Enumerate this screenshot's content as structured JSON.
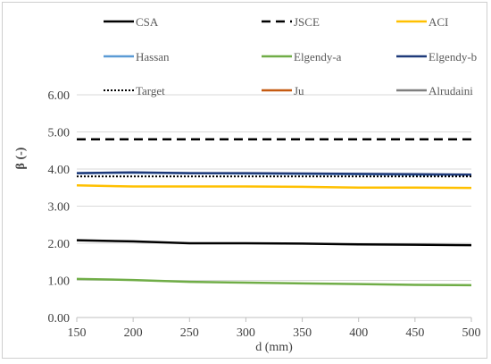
{
  "chart_data": {
    "type": "line",
    "xlabel": "d (mm)",
    "ylabel": "β (-)",
    "xlim": [
      150,
      500
    ],
    "ylim": [
      0,
      6
    ],
    "x_ticks": [
      "150",
      "200",
      "250",
      "300",
      "350",
      "400",
      "450",
      "500"
    ],
    "y_ticks": [
      "0.00",
      "1.00",
      "2.00",
      "3.00",
      "4.00",
      "5.00",
      "6.00"
    ],
    "grid": "horizontal",
    "legend_position": "top",
    "series": [
      {
        "name": "CSA",
        "color": "#000000",
        "dash": "solid",
        "x": [
          150,
          200,
          250,
          300,
          350,
          400,
          450,
          500
        ],
        "values": [
          2.08,
          2.05,
          2.0,
          2.0,
          1.99,
          1.97,
          1.96,
          1.95
        ]
      },
      {
        "name": "JSCE",
        "color": "#000000",
        "dash": "dashed",
        "x": [
          150,
          200,
          250,
          300,
          350,
          400,
          450,
          500
        ],
        "values": [
          4.8,
          4.8,
          4.8,
          4.8,
          4.8,
          4.8,
          4.8,
          4.8
        ]
      },
      {
        "name": "ACI",
        "color": "#FFC000",
        "dash": "solid",
        "x": [
          150,
          200,
          250,
          300,
          350,
          400,
          450,
          500
        ],
        "values": [
          3.56,
          3.53,
          3.53,
          3.53,
          3.52,
          3.5,
          3.5,
          3.49
        ]
      },
      {
        "name": "Hassan",
        "color": "#5B9BD5",
        "dash": "solid",
        "x": [
          150,
          200,
          250,
          300,
          350,
          400,
          450,
          500
        ],
        "values": [
          3.89,
          3.9,
          3.89,
          3.88,
          3.87,
          3.86,
          3.85,
          3.85
        ]
      },
      {
        "name": "Elgendy-a",
        "color": "#70AD47",
        "dash": "solid",
        "x": [
          150,
          200,
          250,
          300,
          350,
          400,
          450,
          500
        ],
        "values": [
          1.04,
          1.01,
          0.96,
          0.94,
          0.92,
          0.9,
          0.88,
          0.87
        ]
      },
      {
        "name": "Elgendy-b",
        "color": "#1F3A7A",
        "dash": "solid",
        "x": [
          150,
          200,
          250,
          300,
          350,
          400,
          450,
          500
        ],
        "values": [
          3.89,
          3.91,
          3.89,
          3.89,
          3.88,
          3.87,
          3.86,
          3.85
        ]
      },
      {
        "name": "Target",
        "color": "#000000",
        "dash": "dotted",
        "x": [
          150,
          200,
          250,
          300,
          350,
          400,
          450,
          500
        ],
        "values": [
          3.8,
          3.8,
          3.8,
          3.8,
          3.8,
          3.8,
          3.8,
          3.8
        ]
      },
      {
        "name": "Ju",
        "color": "#C55A11",
        "dash": "solid",
        "x": [
          150,
          200,
          250,
          300,
          350,
          400,
          450,
          500
        ],
        "values": [
          null,
          null,
          null,
          null,
          null,
          null,
          null,
          null
        ]
      },
      {
        "name": "Alrudaini",
        "color": "#7F7F7F",
        "dash": "solid",
        "x": [
          150,
          200,
          250,
          300,
          350,
          400,
          450,
          500
        ],
        "values": [
          null,
          null,
          null,
          null,
          null,
          null,
          null,
          null
        ]
      }
    ]
  }
}
